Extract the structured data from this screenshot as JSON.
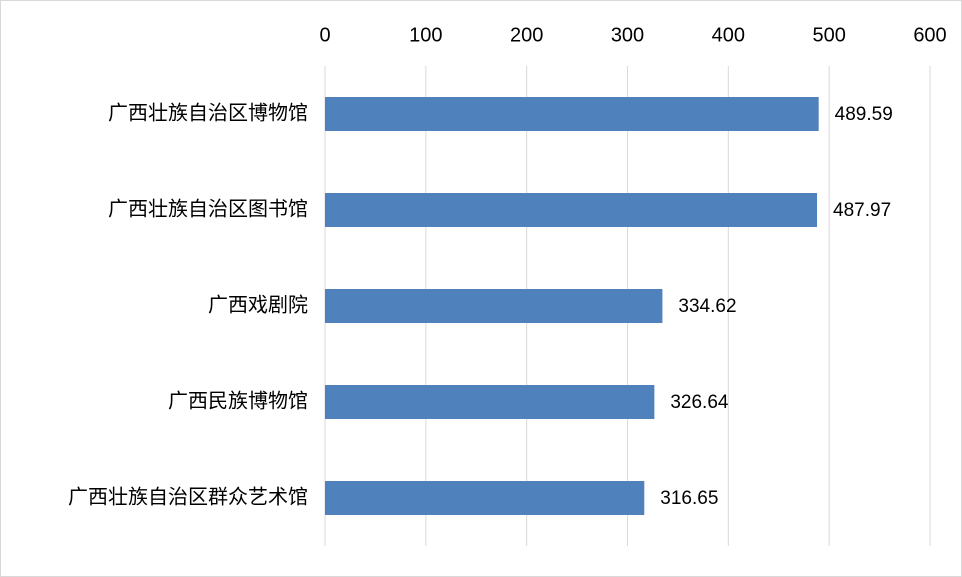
{
  "chart_data": {
    "type": "bar",
    "categories": [
      "广西壮族自治区博物馆",
      "广西壮族自治区图书馆",
      "广西戏剧院",
      "广西民族博物馆",
      "广西壮族自治区群众艺术馆"
    ],
    "values": [
      489.59,
      487.97,
      334.62,
      326.64,
      316.65
    ],
    "color": "#4f81bd",
    "xlim": [
      0,
      600
    ],
    "xticks": [
      0,
      100,
      200,
      300,
      400,
      500,
      600
    ],
    "grid": true
  }
}
